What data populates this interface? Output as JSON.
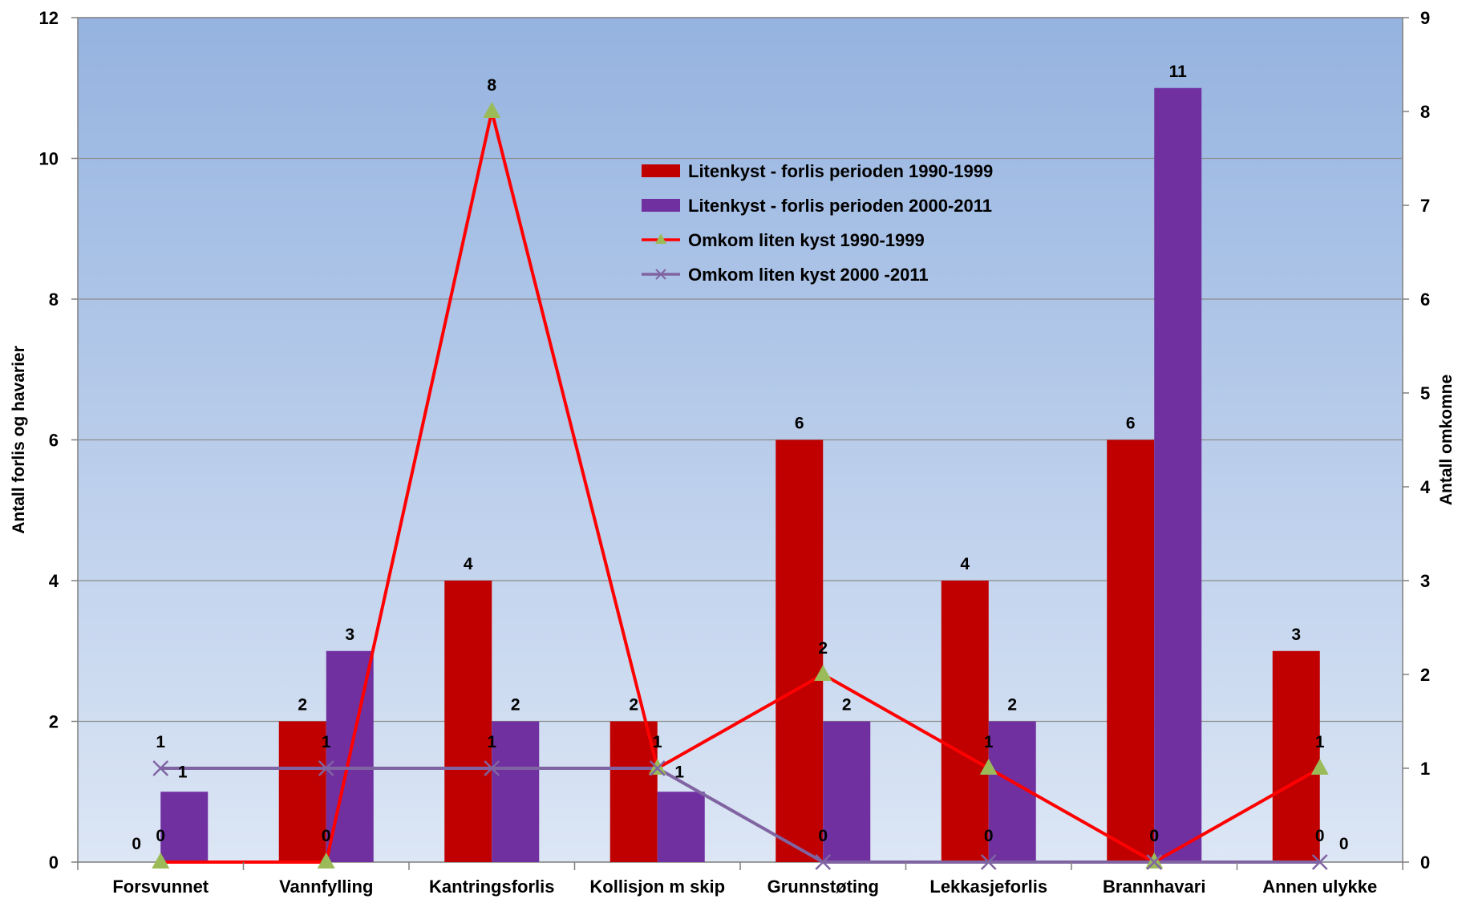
{
  "chart_data": {
    "type": "bar",
    "categories": [
      "Forsvunnet",
      "Vannfylling",
      "Kantringsforlis",
      "Kollisjon m skip",
      "Grunnstøting",
      "Lekkasjeforlis",
      "Brannhavari",
      "Annen ulykke"
    ],
    "series": [
      {
        "name": "Litenkyst - forlis perioden 1990-1999",
        "kind": "bar",
        "axis": "left",
        "color": "#C00000",
        "values": [
          0,
          2,
          4,
          2,
          6,
          4,
          6,
          3
        ]
      },
      {
        "name": "Litenkyst - forlis perioden 2000-2011",
        "kind": "bar",
        "axis": "left",
        "color": "#7030A0",
        "values": [
          1,
          3,
          2,
          1,
          2,
          2,
          11,
          0
        ]
      },
      {
        "name": "Omkom liten kyst 1990-1999",
        "kind": "line",
        "axis": "right",
        "color": "#FF0000",
        "marker": "triangle",
        "marker_color": "#9BBB59",
        "values": [
          0,
          0,
          8,
          1,
          2,
          1,
          0,
          1
        ]
      },
      {
        "name": "Omkom liten kyst 2000 -2011",
        "kind": "line",
        "axis": "right",
        "color": "#8064A2",
        "marker": "x",
        "values": [
          1,
          1,
          1,
          1,
          0,
          0,
          0,
          0
        ]
      }
    ],
    "ylabel": "Antall forlis og havarier",
    "y2label": "Antall omkomne",
    "ylim": [
      0,
      12
    ],
    "y2lim": [
      0,
      9
    ],
    "yticks": [
      0,
      2,
      4,
      6,
      8,
      10,
      12
    ],
    "y2ticks": [
      0,
      1,
      2,
      3,
      4,
      5,
      6,
      7,
      8,
      9
    ],
    "grid": true,
    "legend_position": "top-center",
    "background": "gradient-blue"
  }
}
